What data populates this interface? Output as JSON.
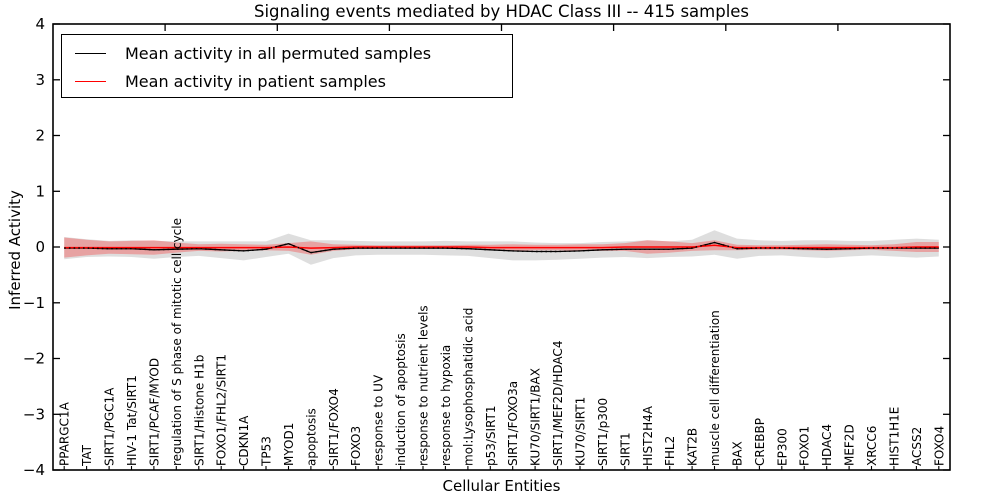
{
  "title": "Signaling events mediated by HDAC Class III -- 415 samples",
  "legend": {
    "items": [
      {
        "label": "Mean activity in all permuted samples",
        "color": "#000000"
      },
      {
        "label": "Mean activity in patient samples",
        "color": "#ff0000"
      }
    ]
  },
  "chart_data": {
    "type": "line",
    "title": "Signaling events mediated by HDAC Class III -- 415 samples",
    "xlabel": "Cellular Entities",
    "ylabel": "Inferred Activity",
    "ylim": [
      -4,
      4
    ],
    "yticks": [
      4,
      3,
      2,
      1,
      0,
      -1,
      -2,
      -3,
      -4
    ],
    "grid": false,
    "legend_position": "upper left",
    "categories": [
      "PPARGC1A",
      "TAT",
      "SIRT1/PGC1A",
      "HIV-1 Tat/SIRT1",
      "SIRT1/PCAF/MYOD",
      "regulation of S phase of mitotic cell cycle",
      "SIRT1/Histone H1b",
      "FOXO1/FHL2/SIRT1",
      "CDKN1A",
      "TP53",
      "MYOD1",
      "apoptosis",
      "SIRT1/FOXO4",
      "FOXO3",
      "response to UV",
      "induction of apoptosis",
      "response to nutrient levels",
      "response to hypoxia",
      "mol:Lysophosphatidic acid",
      "p53/SIRT1",
      "SIRT1/FOXO3a",
      "KU70/SIRT1/BAX",
      "SIRT1/MEF2D/HDAC4",
      "KU70/SIRT1",
      "SIRT1/p300",
      "SIRT1",
      "HIST2H4A",
      "FHL2",
      "KAT2B",
      "muscle cell differentiation",
      "BAX",
      "CREBBP",
      "EP300",
      "FOXO1",
      "HDAC4",
      "MEF2D",
      "XRCC6",
      "HIST1H1E",
      "ACSS2",
      "FOXO4"
    ],
    "series": [
      {
        "name": "Mean activity in all permuted samples",
        "color": "#000000",
        "values": [
          -0.02,
          -0.02,
          -0.03,
          -0.03,
          -0.05,
          -0.04,
          -0.03,
          -0.05,
          -0.07,
          -0.04,
          0.06,
          -0.1,
          -0.04,
          -0.02,
          -0.02,
          -0.02,
          -0.02,
          -0.02,
          -0.03,
          -0.05,
          -0.07,
          -0.08,
          -0.08,
          -0.07,
          -0.05,
          -0.04,
          -0.04,
          -0.04,
          -0.02,
          0.08,
          -0.03,
          -0.02,
          -0.02,
          -0.03,
          -0.04,
          -0.03,
          -0.02,
          -0.02,
          -0.02,
          -0.02
        ]
      },
      {
        "name": "Mean activity in patient samples",
        "color": "#ff0000",
        "values": [
          -0.01,
          -0.01,
          -0.01,
          -0.01,
          -0.01,
          -0.01,
          -0.01,
          -0.01,
          -0.01,
          -0.01,
          0.0,
          -0.02,
          -0.01,
          0.0,
          0.0,
          0.0,
          0.0,
          0.0,
          0.0,
          -0.01,
          -0.01,
          -0.01,
          -0.01,
          -0.01,
          -0.01,
          0.0,
          0.0,
          0.0,
          0.0,
          0.03,
          -0.01,
          -0.01,
          -0.01,
          -0.01,
          -0.01,
          -0.01,
          -0.01,
          -0.01,
          0.0,
          0.0
        ]
      }
    ],
    "bands": [
      {
        "series": "Mean activity in all permuted samples",
        "color": "rgba(0,0,0,0.13)",
        "half_widths": [
          0.2,
          0.16,
          0.14,
          0.15,
          0.16,
          0.14,
          0.13,
          0.15,
          0.17,
          0.14,
          0.18,
          0.22,
          0.16,
          0.13,
          0.12,
          0.12,
          0.12,
          0.13,
          0.13,
          0.15,
          0.17,
          0.16,
          0.15,
          0.14,
          0.14,
          0.14,
          0.16,
          0.14,
          0.15,
          0.22,
          0.18,
          0.14,
          0.13,
          0.15,
          0.16,
          0.14,
          0.13,
          0.15,
          0.17,
          0.15
        ]
      },
      {
        "series": "Mean activity in patient samples",
        "color": "rgba(255,0,0,0.27)",
        "half_widths": [
          0.18,
          0.14,
          0.11,
          0.12,
          0.13,
          0.09,
          0.06,
          0.07,
          0.06,
          0.05,
          0.07,
          0.12,
          0.06,
          0.04,
          0.03,
          0.03,
          0.03,
          0.03,
          0.04,
          0.05,
          0.06,
          0.05,
          0.05,
          0.06,
          0.06,
          0.07,
          0.12,
          0.1,
          0.07,
          0.09,
          0.05,
          0.04,
          0.04,
          0.05,
          0.06,
          0.05,
          0.04,
          0.06,
          0.09,
          0.09
        ]
      }
    ]
  }
}
